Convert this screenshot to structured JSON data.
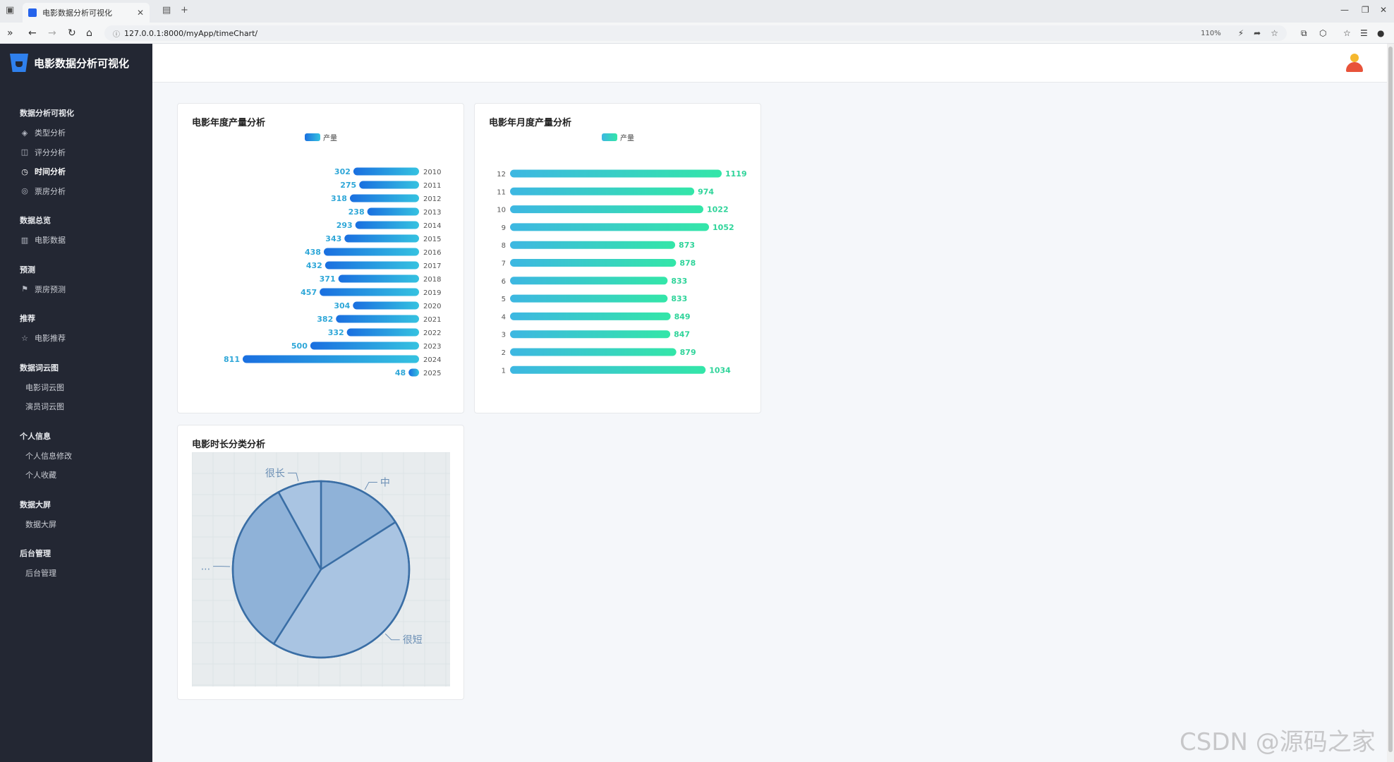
{
  "browser": {
    "tab_title": "电影数据分析可视化",
    "url": "127.0.0.1:8000/myApp/timeChart/",
    "zoom": "110%"
  },
  "sidebar": {
    "brand": "电影数据分析可视化",
    "groups": [
      {
        "title": "数据分析可视化",
        "items": [
          {
            "label": "类型分析",
            "icon": "layers-icon",
            "active": false
          },
          {
            "label": "评分分析",
            "icon": "chart-icon",
            "active": false
          },
          {
            "label": "时间分析",
            "icon": "watch-icon",
            "active": true
          },
          {
            "label": "票房分析",
            "icon": "coin-icon",
            "active": false
          }
        ]
      },
      {
        "title": "数据总览",
        "items": [
          {
            "label": "电影数据",
            "icon": "book-icon",
            "active": false
          }
        ]
      },
      {
        "title": "预测",
        "items": [
          {
            "label": "票房预测",
            "icon": "flag-icon",
            "active": false
          }
        ]
      },
      {
        "title": "推荐",
        "items": [
          {
            "label": "电影推荐",
            "icon": "star-icon",
            "active": false
          }
        ]
      },
      {
        "title": "数据词云图",
        "items": [
          {
            "label": "电影词云图",
            "icon": "",
            "active": false
          },
          {
            "label": "演员词云图",
            "icon": "",
            "active": false
          }
        ]
      },
      {
        "title": "个人信息",
        "items": [
          {
            "label": "个人信息修改",
            "icon": "",
            "active": false
          },
          {
            "label": "个人收藏",
            "icon": "",
            "active": false
          }
        ]
      },
      {
        "title": "数据大屏",
        "items": [
          {
            "label": "数据大屏",
            "icon": "",
            "active": false
          }
        ]
      },
      {
        "title": "后台管理",
        "items": [
          {
            "label": "后台管理",
            "icon": "",
            "active": false
          }
        ]
      }
    ]
  },
  "chart_data": [
    {
      "type": "bar",
      "orientation": "horizontal",
      "title": "电影年度产量分析",
      "legend": [
        "产量"
      ],
      "categories": [
        "2010",
        "2011",
        "2012",
        "2013",
        "2014",
        "2015",
        "2016",
        "2017",
        "2018",
        "2019",
        "2020",
        "2021",
        "2022",
        "2023",
        "2024",
        "2025"
      ],
      "series": [
        {
          "name": "产量",
          "values": [
            302,
            275,
            318,
            238,
            293,
            343,
            438,
            432,
            371,
            457,
            304,
            382,
            332,
            500,
            811,
            48
          ]
        }
      ],
      "colors": [
        "#1a6fe0",
        "#35c2e0"
      ]
    },
    {
      "type": "bar",
      "orientation": "horizontal",
      "title": "电影年月度产量分析",
      "legend": [
        "产量"
      ],
      "categories": [
        "12",
        "11",
        "10",
        "9",
        "8",
        "7",
        "6",
        "5",
        "4",
        "3",
        "2",
        "1"
      ],
      "series": [
        {
          "name": "产量",
          "values": [
            1119,
            974,
            1022,
            1052,
            873,
            878,
            833,
            833,
            849,
            847,
            879,
            1034
          ]
        }
      ],
      "colors": [
        "#3db7e2",
        "#33e6a8"
      ]
    },
    {
      "type": "pie",
      "title": "电影时长分类分析",
      "labels": [
        "中",
        "很短",
        "...",
        "很长"
      ],
      "values": [
        16,
        43,
        33,
        8
      ],
      "colors": [
        "#7fa8d6",
        "#3a6ea5"
      ]
    }
  ],
  "watermark": "CSDN @源码之家"
}
